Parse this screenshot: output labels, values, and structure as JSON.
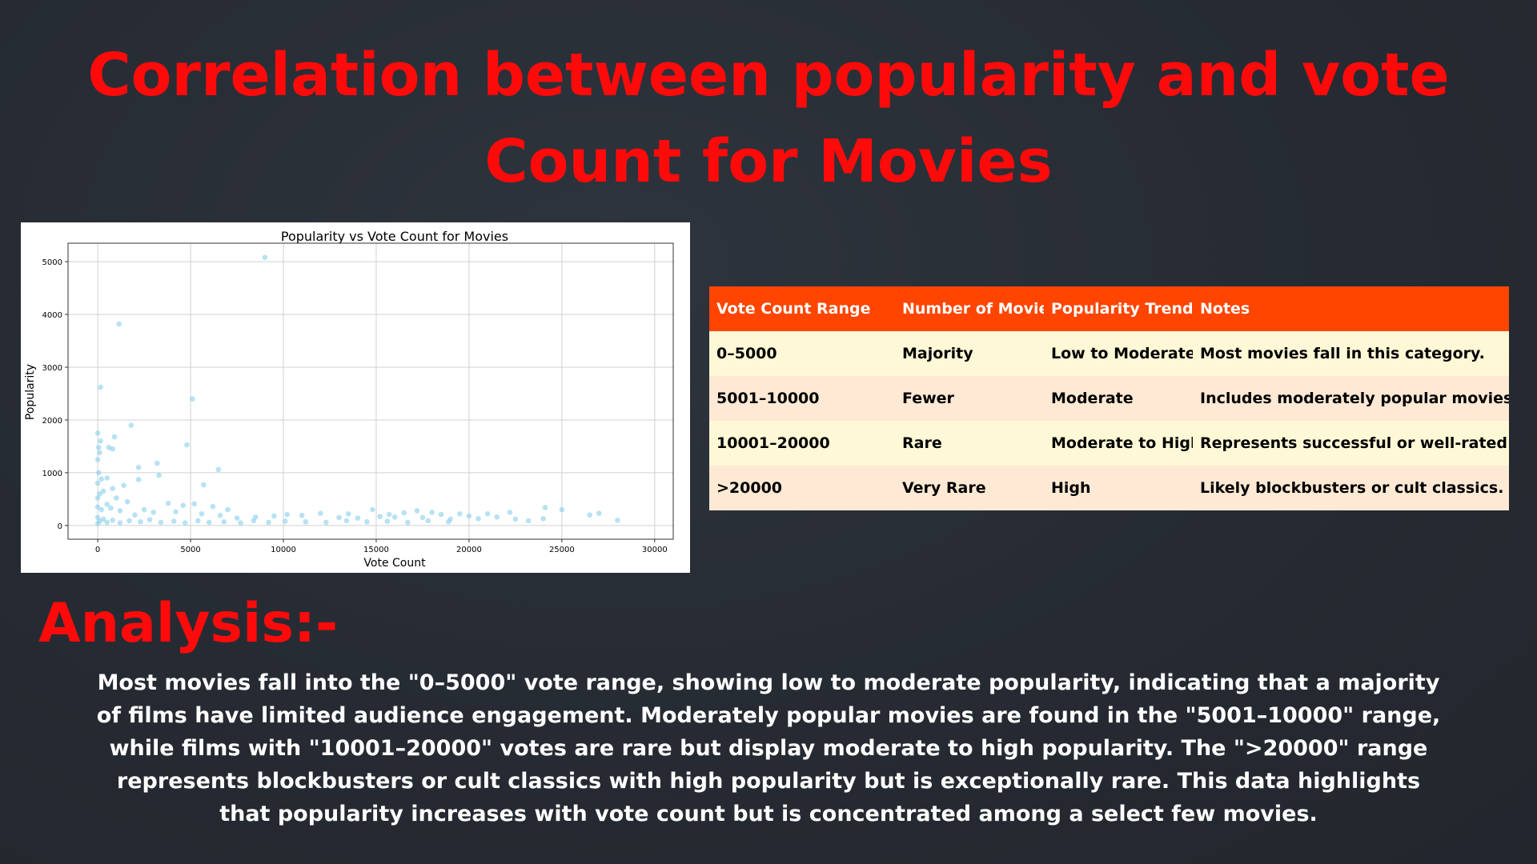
{
  "slide": {
    "title": "Correlation between popularity and vote Count for Movies",
    "analysis_heading": "Analysis:-",
    "analysis_text": "Most movies fall into the \"0–5000\" vote range, showing low to moderate popularity, indicating that a majority of films have limited audience engagement. Moderately popular movies are found in the \"5001–10000\" range, while films with \"10001–20000\" votes are rare but display moderate to high popularity. The \">20000\" range represents blockbusters or cult classics with high popularity but is exceptionally rare. This data highlights that popularity increases with vote count but is concentrated among a select few movies.",
    "colors": {
      "background": "#262b33",
      "title": "#ff0a0a",
      "table_header": "#ff4500",
      "row_odd": "#fff8d6",
      "row_even": "#fde9d4",
      "points": "#87ceeb"
    }
  },
  "table": {
    "headers": [
      "Vote Count Range",
      "Number of Movies",
      "Popularity Trend",
      "Notes"
    ],
    "rows": [
      [
        "0–5000",
        "Majority",
        "Low to Moderate",
        "Most movies fall in this category."
      ],
      [
        "5001–10000",
        "Fewer",
        "Moderate",
        "Includes moderately popular movies."
      ],
      [
        "10001–20000",
        "Rare",
        "Moderate to High",
        "Represents successful or well-rated films."
      ],
      [
        ">20000",
        "Very Rare",
        "High",
        "Likely blockbusters or cult classics."
      ]
    ]
  },
  "chart_data": {
    "type": "scatter",
    "title": "Popularity vs Vote Count for Movies",
    "xlabel": "Vote Count",
    "ylabel": "Popularity",
    "xlim": [
      -1600,
      31000
    ],
    "ylim": [
      -260,
      5350
    ],
    "xticks": [
      0,
      5000,
      10000,
      15000,
      20000,
      25000,
      30000
    ],
    "yticks": [
      0,
      1000,
      2000,
      3000,
      4000,
      5000
    ],
    "grid": true,
    "color": "#87ceeb",
    "points": [
      [
        9000,
        5080
      ],
      [
        1150,
        3820
      ],
      [
        150,
        2620
      ],
      [
        5100,
        2400
      ],
      [
        1800,
        1900
      ],
      [
        0,
        1750
      ],
      [
        150,
        1600
      ],
      [
        900,
        1680
      ],
      [
        600,
        1480
      ],
      [
        800,
        1450
      ],
      [
        50,
        1480
      ],
      [
        4800,
        1530
      ],
      [
        0,
        1250
      ],
      [
        100,
        1380
      ],
      [
        6500,
        1060
      ],
      [
        3200,
        1180
      ],
      [
        2200,
        1100
      ],
      [
        3300,
        950
      ],
      [
        2200,
        870
      ],
      [
        5700,
        770
      ],
      [
        50,
        1000
      ],
      [
        200,
        880
      ],
      [
        500,
        900
      ],
      [
        0,
        800
      ],
      [
        1400,
        760
      ],
      [
        800,
        700
      ],
      [
        300,
        650
      ],
      [
        3800,
        420
      ],
      [
        5200,
        410
      ],
      [
        6200,
        360
      ],
      [
        7000,
        300
      ],
      [
        4600,
        380
      ],
      [
        2500,
        300
      ],
      [
        1600,
        450
      ],
      [
        1000,
        520
      ],
      [
        100,
        600
      ],
      [
        0,
        520
      ],
      [
        700,
        330
      ],
      [
        12000,
        230
      ],
      [
        13500,
        220
      ],
      [
        14800,
        300
      ],
      [
        15700,
        210
      ],
      [
        16500,
        240
      ],
      [
        17200,
        280
      ],
      [
        18000,
        250
      ],
      [
        18500,
        210
      ],
      [
        19500,
        220
      ],
      [
        20000,
        180
      ],
      [
        21000,
        220
      ],
      [
        22200,
        250
      ],
      [
        22500,
        120
      ],
      [
        24100,
        340
      ],
      [
        25000,
        300
      ],
      [
        24000,
        130
      ],
      [
        26500,
        200
      ],
      [
        27000,
        230
      ],
      [
        28000,
        100
      ],
      [
        23200,
        90
      ],
      [
        19000,
        120
      ],
      [
        17500,
        150
      ],
      [
        16000,
        160
      ],
      [
        14000,
        140
      ],
      [
        11000,
        190
      ],
      [
        10200,
        210
      ],
      [
        9500,
        180
      ],
      [
        8500,
        160
      ],
      [
        7500,
        140
      ],
      [
        3000,
        250
      ],
      [
        2000,
        200
      ],
      [
        500,
        400
      ],
      [
        200,
        300
      ],
      [
        0,
        350
      ],
      [
        1200,
        280
      ],
      [
        4200,
        260
      ],
      [
        5600,
        220
      ],
      [
        6600,
        190
      ],
      [
        13000,
        150
      ],
      [
        15200,
        170
      ],
      [
        20500,
        130
      ],
      [
        21500,
        160
      ],
      [
        0,
        150
      ],
      [
        100,
        80
      ],
      [
        0,
        40
      ],
      [
        300,
        120
      ],
      [
        500,
        60
      ],
      [
        800,
        100
      ],
      [
        1200,
        50
      ],
      [
        1700,
        90
      ],
      [
        2300,
        70
      ],
      [
        2800,
        110
      ],
      [
        3400,
        60
      ],
      [
        4100,
        80
      ],
      [
        4700,
        50
      ],
      [
        5400,
        90
      ],
      [
        6000,
        60
      ],
      [
        6800,
        70
      ],
      [
        7700,
        50
      ],
      [
        8400,
        90
      ],
      [
        9200,
        60
      ],
      [
        10100,
        80
      ],
      [
        11200,
        70
      ],
      [
        12300,
        60
      ],
      [
        13400,
        90
      ],
      [
        14500,
        70
      ],
      [
        15600,
        80
      ],
      [
        16700,
        60
      ],
      [
        17800,
        90
      ],
      [
        18900,
        70
      ]
    ]
  }
}
